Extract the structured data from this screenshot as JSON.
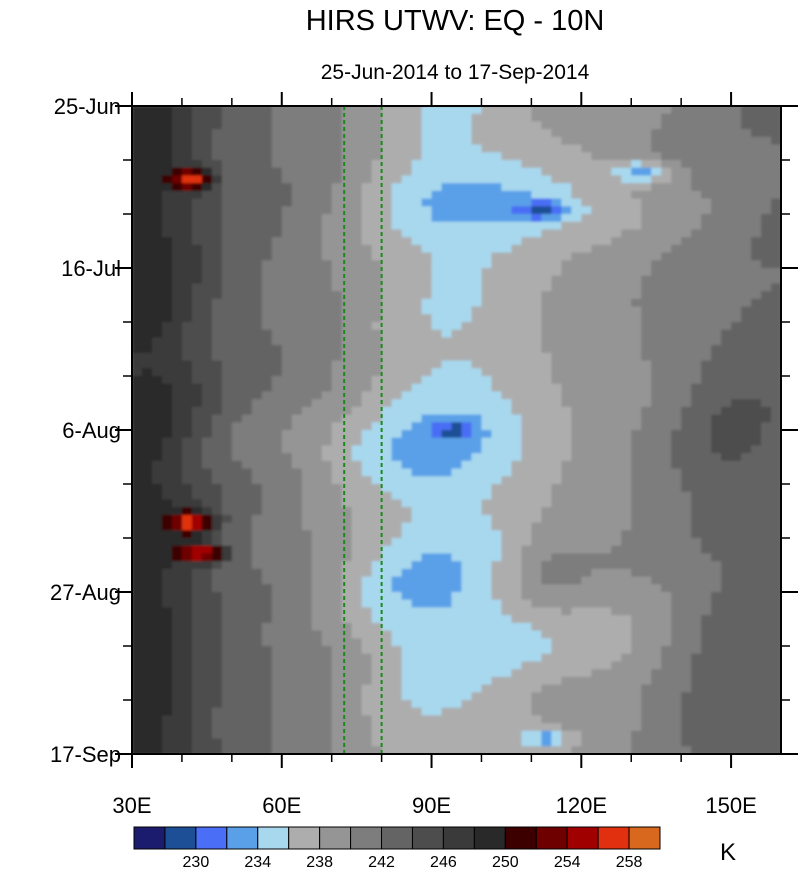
{
  "chart_data": {
    "type": "heatmap",
    "title": "HIRS UTWV: EQ - 10N",
    "subtitle": "25-Jun-2014 to 17-Sep-2014",
    "x_range": [
      30,
      160
    ],
    "x_ticks": [
      {
        "value": 30,
        "label": "30E"
      },
      {
        "value": 60,
        "label": "60E"
      },
      {
        "value": 90,
        "label": "90E"
      },
      {
        "value": 120,
        "label": "120E"
      },
      {
        "value": 150,
        "label": "150E"
      }
    ],
    "y_range_days": [
      0,
      84
    ],
    "y_ticks": [
      {
        "value": 0,
        "label": "25-Jun"
      },
      {
        "value": 21,
        "label": "16-Jul"
      },
      {
        "value": 42,
        "label": "6-Aug"
      },
      {
        "value": 63,
        "label": "27-Aug"
      },
      {
        "value": 84,
        "label": "17-Sep"
      }
    ],
    "reference_lines_lon": [
      72.5,
      80
    ],
    "colorbar": {
      "unit": "K",
      "levels": [
        228,
        230,
        232,
        234,
        236,
        238,
        240,
        242,
        244,
        246,
        248,
        250,
        252,
        254,
        256,
        258
      ],
      "labels": [
        "230",
        "234",
        "238",
        "242",
        "246",
        "250",
        "254",
        "258"
      ],
      "colors": [
        "#1c1c6e",
        "#1c4f96",
        "#4a6ef5",
        "#5aa0e8",
        "#a8d8ee",
        "#adadad",
        "#959595",
        "#7d7d7d",
        "#646464",
        "#4d4d4d",
        "#3a3a3a",
        "#292929",
        "#3d0000",
        "#6e0000",
        "#a00000",
        "#e03010",
        "#d8681e"
      ]
    },
    "features": [
      {
        "lon": 42,
        "day": 9.5,
        "value": 253,
        "note": "dark red peak"
      },
      {
        "lon": 42,
        "day": 54,
        "value": 253,
        "note": "dark red peak"
      },
      {
        "lon": 44,
        "day": 58,
        "value": 253,
        "note": "dark red peak"
      },
      {
        "lon": 132,
        "day": 8.5,
        "value": 230,
        "note": "dark blue"
      },
      {
        "lon": 112,
        "day": 13.5,
        "value": 230,
        "note": "dark blue"
      },
      {
        "lon": 95,
        "day": 42,
        "value": 231,
        "note": "dark blue"
      },
      {
        "lon": 113,
        "day": 82,
        "value": 231,
        "note": "dark blue"
      }
    ]
  }
}
